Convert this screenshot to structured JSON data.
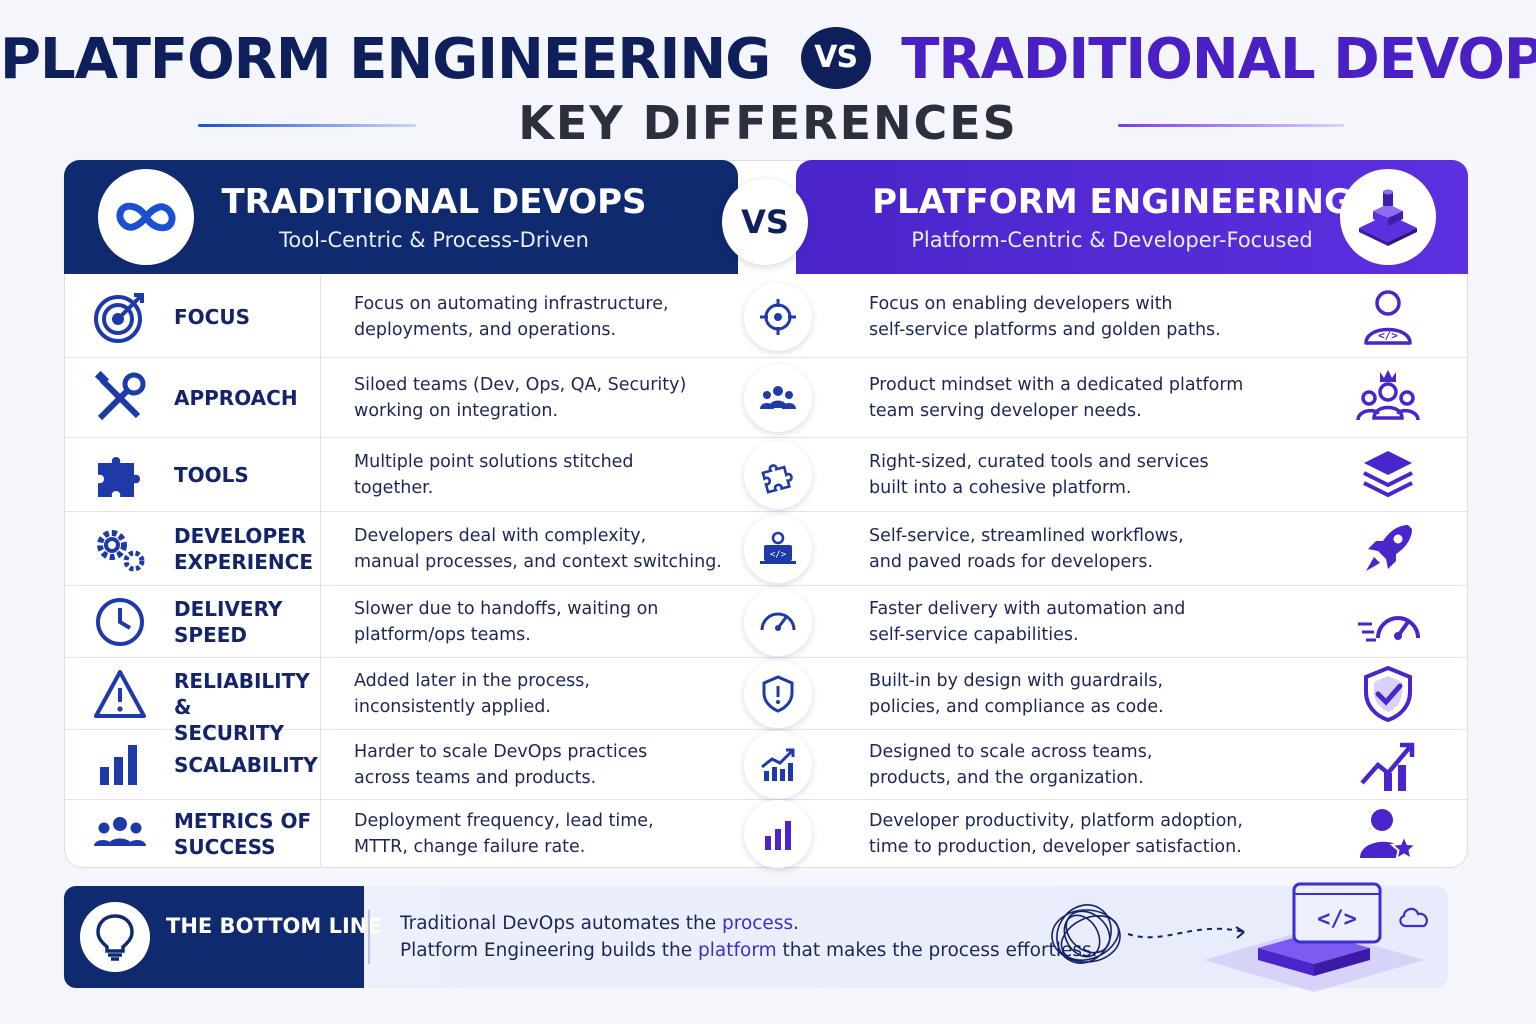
{
  "title": {
    "left": "PLATFORM ENGINEERING",
    "vs": "VS",
    "right": "TRADITIONAL DEVOPS:",
    "subtitle": "KEY DIFFERENCES"
  },
  "columns": {
    "left": {
      "title": "TRADITIONAL DEVOPS",
      "subtitle": "Tool-Centric & Process-Driven",
      "icon": "infinity-icon",
      "color": "#0f2a6e"
    },
    "vs": "VS",
    "right": {
      "title": "PLATFORM ENGINEERING",
      "subtitle": "Platform-Centric & Developer-Focused",
      "icon": "platform-cube-icon",
      "color": "#4a25c9"
    }
  },
  "rows": [
    {
      "category": "FOCUS",
      "left_icon": "target-icon",
      "left_line1": "Focus on automating infrastructure,",
      "left_line2": "deployments, and operations.",
      "center_icon": "crosshair-icon",
      "right_line1": "Focus on enabling developers with",
      "right_line2": "self-service platforms and golden paths.",
      "right_icon": "developer-code-icon"
    },
    {
      "category": "APPROACH",
      "left_icon": "tools-icon",
      "left_line1": "Siloed teams (Dev, Ops, QA, Security)",
      "left_line2": "working on integration.",
      "center_icon": "team-icon",
      "right_line1": "Product mindset with a dedicated platform",
      "right_line2": "team serving developer needs.",
      "right_icon": "team-crown-icon"
    },
    {
      "category": "TOOLS",
      "left_icon": "puzzle-icon",
      "left_line1": "Multiple point solutions stitched",
      "left_line2": "together.",
      "center_icon": "puzzle-outline-icon",
      "right_line1": "Right-sized, curated tools and services",
      "right_line2": "built into a cohesive platform.",
      "right_icon": "layers-icon"
    },
    {
      "category_line1": "DEVELOPER",
      "category_line2": "EXPERIENCE",
      "left_icon": "gears-icon",
      "left_line1": "Developers deal with complexity,",
      "left_line2": "manual processes, and context switching.",
      "center_icon": "developer-laptop-icon",
      "right_line1": "Self-service, streamlined workflows,",
      "right_line2": "and paved roads for developers.",
      "right_icon": "rocket-icon"
    },
    {
      "category_line1": "DELIVERY",
      "category_line2": "SPEED",
      "left_icon": "clock-icon",
      "left_line1": "Slower due to handoffs, waiting on",
      "left_line2": "platform/ops teams.",
      "center_icon": "speedometer-icon",
      "right_line1": "Faster delivery with automation and",
      "right_line2": "self-service capabilities.",
      "right_icon": "fast-speedometer-icon"
    },
    {
      "category_line1": "RELIABILITY &",
      "category_line2": "SECURITY",
      "left_icon": "warning-icon",
      "left_line1": "Added later in the process,",
      "left_line2": "inconsistently applied.",
      "center_icon": "shield-alert-icon",
      "right_line1": "Built-in by design with guardrails,",
      "right_line2": "policies, and compliance as code.",
      "right_icon": "shield-check-icon"
    },
    {
      "category": "SCALABILITY",
      "left_icon": "bar-chart-icon",
      "left_line1": "Harder to scale DevOps practices",
      "left_line2": "across teams and products.",
      "center_icon": "growth-chart-icon",
      "right_line1": "Designed to scale across teams,",
      "right_line2": "products, and the organization.",
      "right_icon": "trend-up-icon"
    },
    {
      "category_line1": "METRICS OF",
      "category_line2": "SUCCESS",
      "left_icon": "people-icon",
      "left_line1": "Deployment frequency, lead time,",
      "left_line2": "MTTR, change failure rate.",
      "center_icon": "bar-chart-icon",
      "right_line1": "Developer productivity, platform adoption,",
      "right_line2": "time to production, developer satisfaction.",
      "right_icon": "user-star-icon"
    }
  ],
  "bottom_line": {
    "title": "THE BOTTOM LINE",
    "icon": "lightbulb-icon",
    "line1_a": "Traditional DevOps automates the ",
    "line1_hl": "process",
    "line1_b": ".",
    "line2_a": "Platform Engineering builds the ",
    "line2_hl": "platform",
    "line2_b": " that makes the process effortless.",
    "illustration": "chaos-to-platform-icon"
  },
  "colors": {
    "navy": "#0f2a6e",
    "purple": "#4a25c9",
    "accent_blue": "#1d4fd1",
    "highlight": "#3a2fd0"
  }
}
